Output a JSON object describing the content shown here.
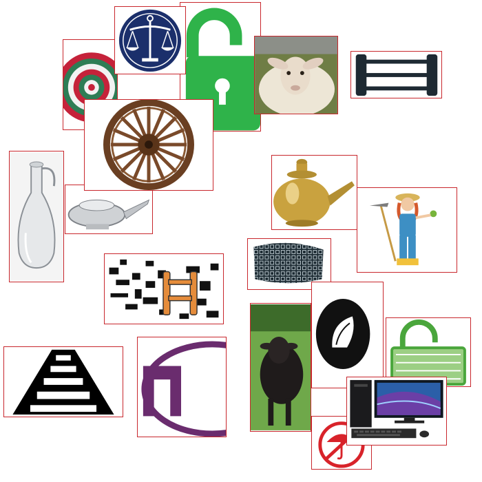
{
  "canvas": {
    "background": "#ffffff",
    "border_color": "#c8262c"
  },
  "tiles": [
    {
      "icon": "target-icon"
    },
    {
      "icon": "scales-zodiac-icon"
    },
    {
      "icon": "open-padlock-icon",
      "color": "#2fb34a"
    },
    {
      "icon": "sheep-icon"
    },
    {
      "icon": "ladder-icon"
    },
    {
      "icon": "wooden-wheel-icon"
    },
    {
      "icon": "glass-carafe-icon"
    },
    {
      "icon": "silver-teapot-icon"
    },
    {
      "icon": "brass-pot-icon"
    },
    {
      "icon": "farmer-girl-icon"
    },
    {
      "icon": "ladder-pattern-icon"
    },
    {
      "icon": "knitted-cap-icon"
    },
    {
      "icon": "shell-icon"
    },
    {
      "icon": "green-padlock-icon",
      "color": "#4aa63c"
    },
    {
      "icon": "railway-track-icon"
    },
    {
      "icon": "letter-logo-icon",
      "color": "#6a2c6e"
    },
    {
      "icon": "black-sheep-icon"
    },
    {
      "icon": "desktop-computer-icon"
    },
    {
      "icon": "umbrella-icon",
      "color": "#d8232a"
    }
  ]
}
